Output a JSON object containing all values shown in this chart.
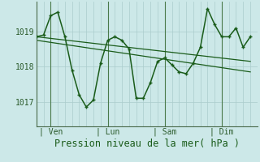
{
  "background_color": "#cce8e8",
  "grid_color": "#aacccc",
  "line_color": "#1a5c1a",
  "ylabel": "Pression niveau de la mer( hPa )",
  "yticks": [
    1017,
    1018,
    1019
  ],
  "ylim": [
    1016.3,
    1019.85
  ],
  "day_labels": [
    "| Ven",
    "| Lun",
    "| Sam",
    "| Dim"
  ],
  "day_positions": [
    2,
    10,
    18,
    26
  ],
  "xlim": [
    0,
    31
  ],
  "n_xgrid": 31,
  "main_x": [
    0,
    1,
    2,
    3,
    4,
    5,
    6,
    7,
    8,
    9,
    10,
    11,
    12,
    13,
    14,
    15,
    16,
    17,
    18,
    19,
    20,
    21,
    22,
    23,
    24,
    25,
    26,
    27,
    28,
    29,
    30
  ],
  "main_y": [
    1018.85,
    1018.9,
    1019.45,
    1019.55,
    1018.85,
    1017.9,
    1017.2,
    1016.85,
    1017.05,
    1018.1,
    1018.75,
    1018.85,
    1018.75,
    1018.5,
    1017.1,
    1017.1,
    1017.55,
    1018.15,
    1018.25,
    1018.05,
    1017.85,
    1017.8,
    1018.1,
    1018.55,
    1019.65,
    1019.2,
    1018.85,
    1018.85,
    1019.1,
    1018.55,
    1018.85
  ],
  "trend1_x": [
    0,
    30
  ],
  "trend1_y": [
    1018.85,
    1018.15
  ],
  "trend2_x": [
    0,
    30
  ],
  "trend2_y": [
    1018.75,
    1017.85
  ],
  "vline_positions": [
    2,
    10,
    18,
    26
  ],
  "vline_color": "#4a7a4a",
  "tick_label_color": "#2a5a2a",
  "xlabel_color": "#1a5c1a",
  "xlabel_fontsize": 8.5,
  "ytick_fontsize": 7,
  "xtick_fontsize": 7
}
